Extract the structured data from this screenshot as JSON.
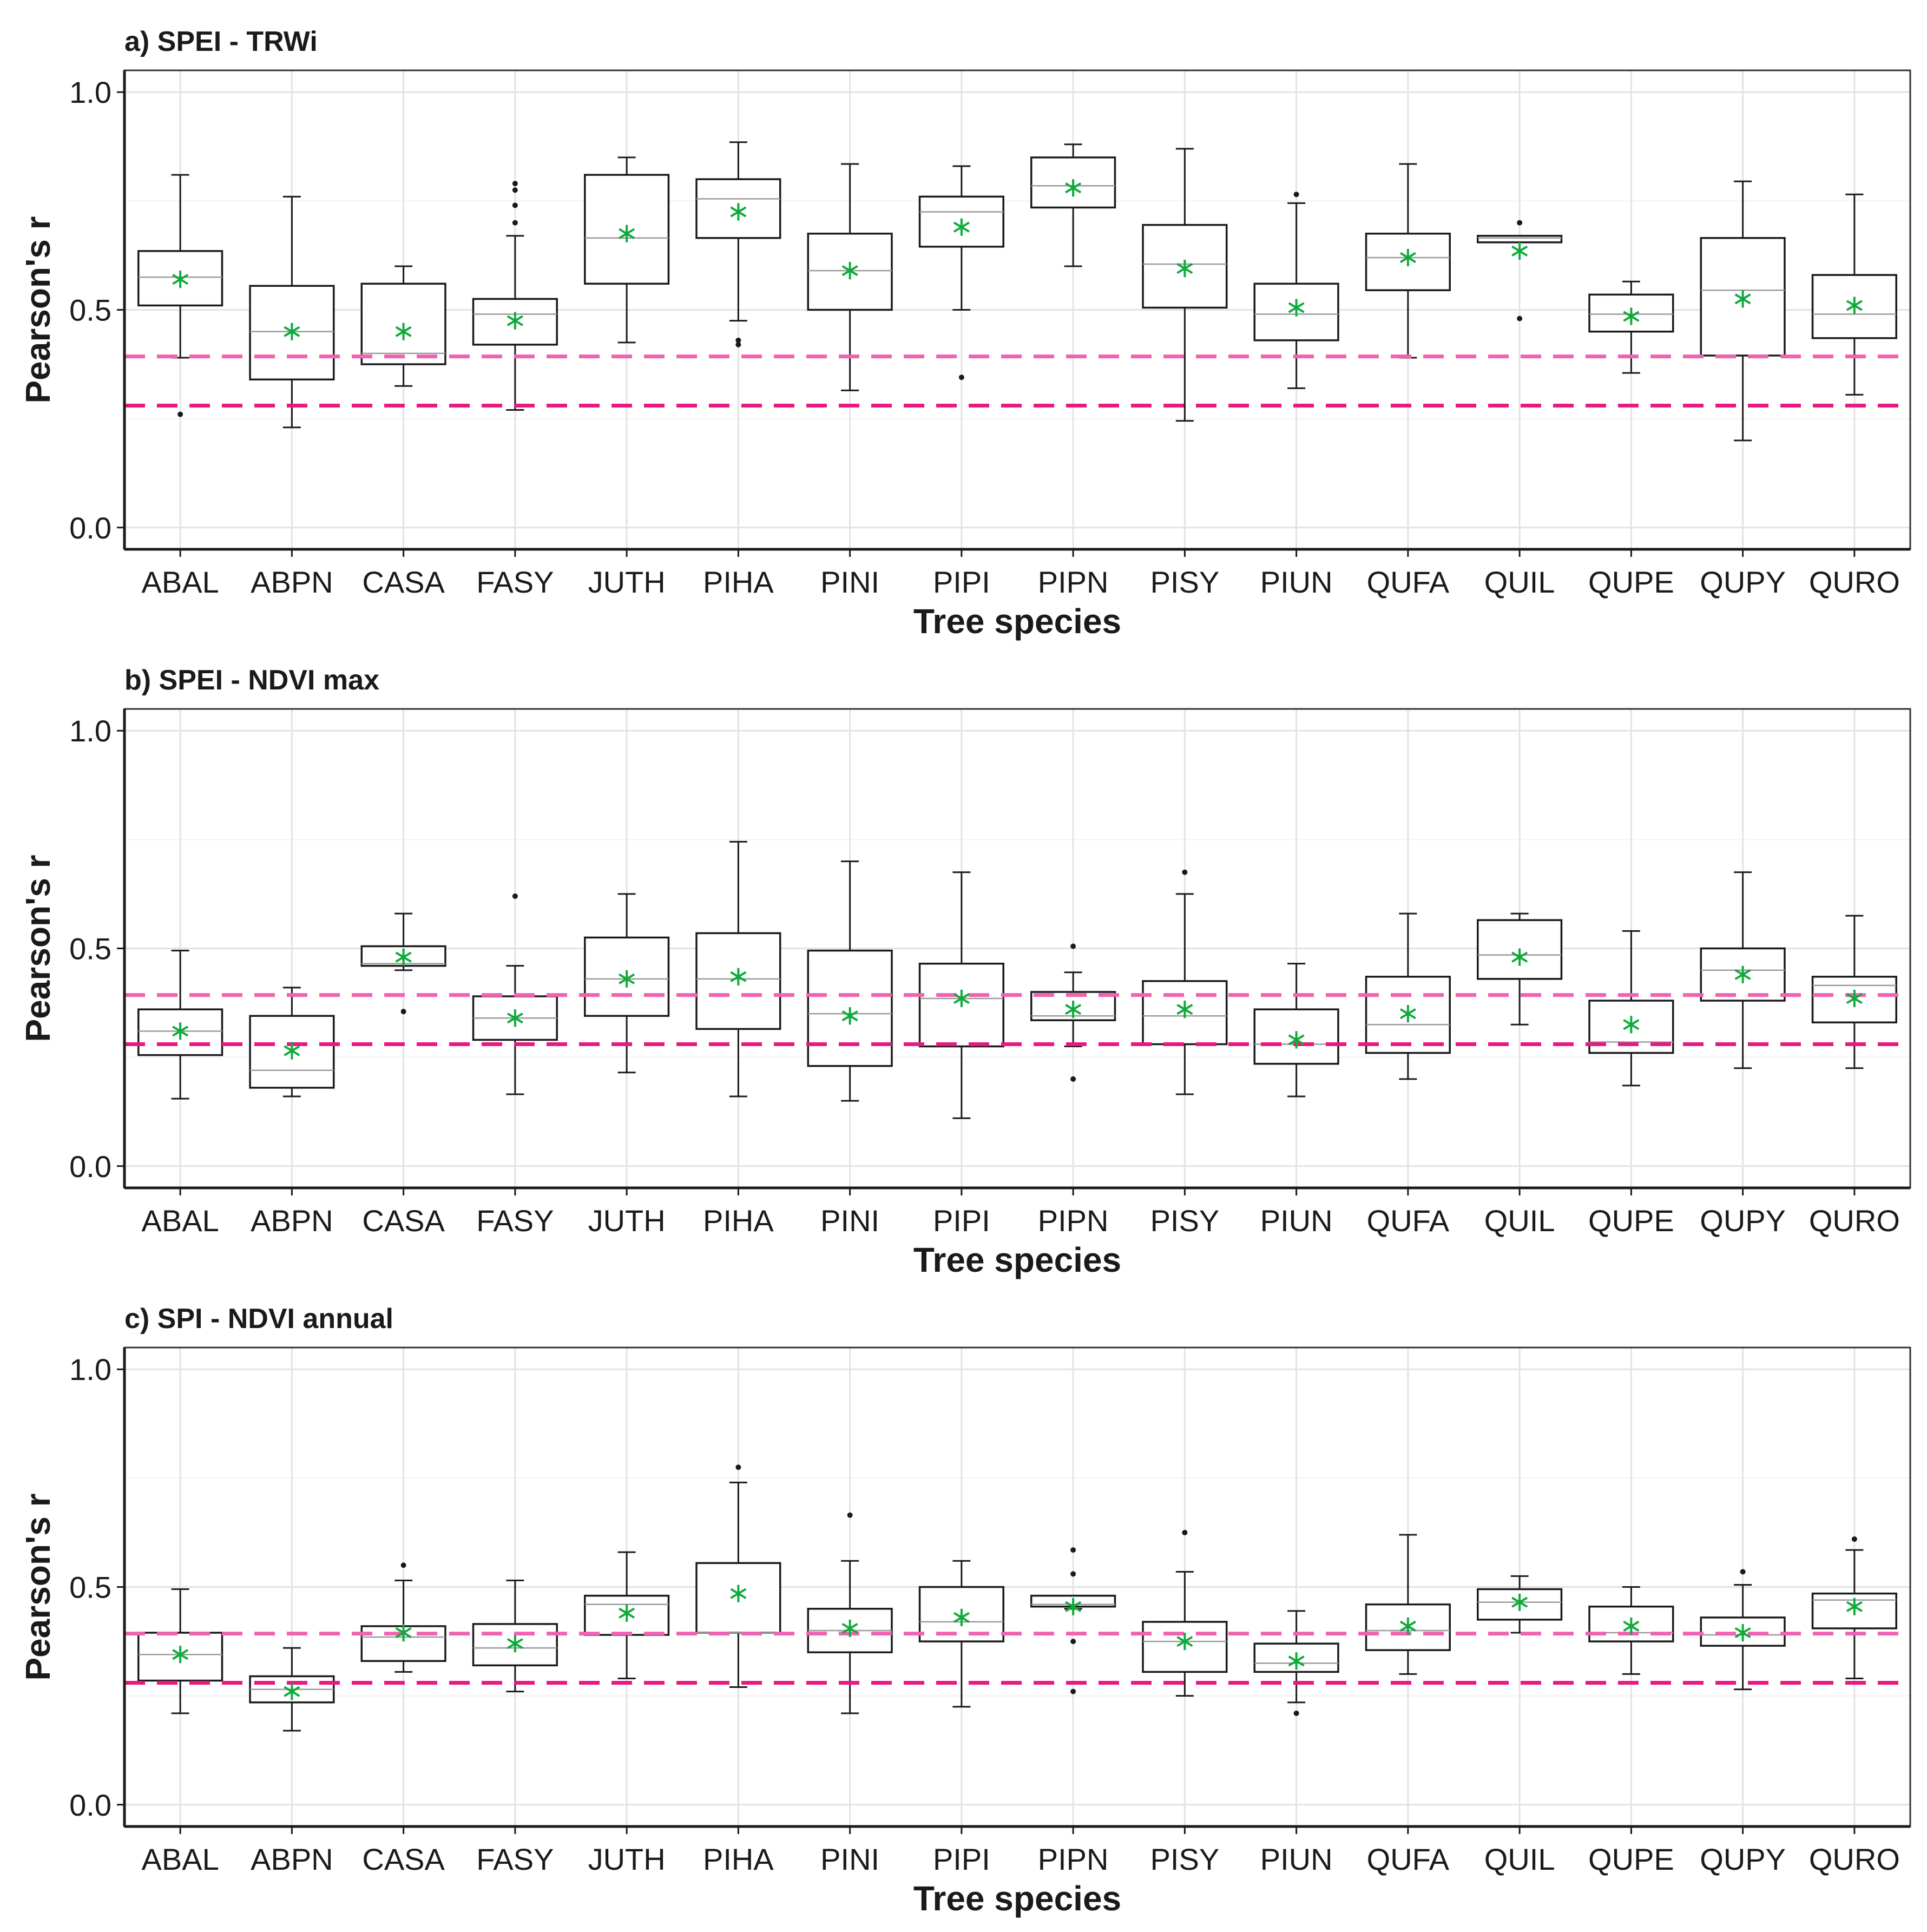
{
  "figure": {
    "description_labels": {
      "mean_marker": "*"
    }
  },
  "chart_data": [
    {
      "type": "boxplot",
      "title": "a) SPEI - TRWi",
      "xlabel": "Tree species",
      "ylabel": "Pearson's r",
      "ylim": [
        -0.05,
        1.05
      ],
      "yticks": [
        0.0,
        0.5,
        1.0
      ],
      "ytick_labels": [
        "0.0",
        "0.5",
        "1.0"
      ],
      "grid": true,
      "reference_lines": [
        {
          "value": 0.393,
          "color": "#f063b1",
          "style": "dashed"
        },
        {
          "value": 0.28,
          "color": "#e8197f",
          "style": "dashed"
        }
      ],
      "categories": [
        "ABAL",
        "ABPN",
        "CASA",
        "FASY",
        "JUTH",
        "PIHA",
        "PINI",
        "PIPI",
        "PIPN",
        "PISY",
        "PIUN",
        "QUFA",
        "QUIL",
        "QUPE",
        "QUPY",
        "QURO"
      ],
      "boxes": [
        {
          "min": 0.39,
          "q1": 0.51,
          "median": 0.575,
          "q3": 0.635,
          "max": 0.81,
          "mean": 0.57,
          "outliers": [
            0.26
          ]
        },
        {
          "min": 0.23,
          "q1": 0.34,
          "median": 0.45,
          "q3": 0.555,
          "max": 0.76,
          "mean": 0.45,
          "outliers": []
        },
        {
          "min": 0.325,
          "q1": 0.375,
          "median": 0.4,
          "q3": 0.56,
          "max": 0.6,
          "mean": 0.45,
          "outliers": []
        },
        {
          "min": 0.27,
          "q1": 0.42,
          "median": 0.49,
          "q3": 0.525,
          "max": 0.67,
          "mean": 0.475,
          "outliers": [
            0.7,
            0.74,
            0.775,
            0.79
          ]
        },
        {
          "min": 0.425,
          "q1": 0.56,
          "median": 0.665,
          "q3": 0.81,
          "max": 0.85,
          "mean": 0.675,
          "outliers": []
        },
        {
          "min": 0.475,
          "q1": 0.665,
          "median": 0.755,
          "q3": 0.8,
          "max": 0.885,
          "mean": 0.725,
          "outliers": [
            0.42,
            0.43
          ]
        },
        {
          "min": 0.315,
          "q1": 0.5,
          "median": 0.59,
          "q3": 0.675,
          "max": 0.835,
          "mean": 0.59,
          "outliers": []
        },
        {
          "min": 0.5,
          "q1": 0.645,
          "median": 0.725,
          "q3": 0.76,
          "max": 0.83,
          "mean": 0.69,
          "outliers": [
            0.345
          ]
        },
        {
          "min": 0.6,
          "q1": 0.735,
          "median": 0.785,
          "q3": 0.85,
          "max": 0.88,
          "mean": 0.78,
          "outliers": []
        },
        {
          "min": 0.245,
          "q1": 0.505,
          "median": 0.605,
          "q3": 0.695,
          "max": 0.87,
          "mean": 0.595,
          "outliers": []
        },
        {
          "min": 0.32,
          "q1": 0.43,
          "median": 0.49,
          "q3": 0.56,
          "max": 0.745,
          "mean": 0.505,
          "outliers": [
            0.765
          ]
        },
        {
          "min": 0.39,
          "q1": 0.545,
          "median": 0.62,
          "q3": 0.675,
          "max": 0.835,
          "mean": 0.62,
          "outliers": []
        },
        {
          "min": 0.655,
          "q1": 0.655,
          "median": 0.665,
          "q3": 0.67,
          "max": 0.67,
          "mean": 0.635,
          "outliers": [
            0.48,
            0.7
          ]
        },
        {
          "min": 0.355,
          "q1": 0.45,
          "median": 0.49,
          "q3": 0.535,
          "max": 0.565,
          "mean": 0.485,
          "outliers": []
        },
        {
          "min": 0.2,
          "q1": 0.395,
          "median": 0.545,
          "q3": 0.665,
          "max": 0.795,
          "mean": 0.525,
          "outliers": []
        },
        {
          "min": 0.305,
          "q1": 0.435,
          "median": 0.49,
          "q3": 0.58,
          "max": 0.765,
          "mean": 0.51,
          "outliers": []
        }
      ]
    },
    {
      "type": "boxplot",
      "title": "b) SPEI - NDVI max",
      "xlabel": "Tree species",
      "ylabel": "Pearson's r",
      "ylim": [
        -0.05,
        1.05
      ],
      "yticks": [
        0.0,
        0.5,
        1.0
      ],
      "ytick_labels": [
        "0.0",
        "0.5",
        "1.0"
      ],
      "grid": true,
      "reference_lines": [
        {
          "value": 0.393,
          "color": "#f063b1",
          "style": "dashed"
        },
        {
          "value": 0.28,
          "color": "#e8197f",
          "style": "dashed"
        }
      ],
      "categories": [
        "ABAL",
        "ABPN",
        "CASA",
        "FASY",
        "JUTH",
        "PIHA",
        "PINI",
        "PIPI",
        "PIPN",
        "PISY",
        "PIUN",
        "QUFA",
        "QUIL",
        "QUPE",
        "QUPY",
        "QURO"
      ],
      "boxes": [
        {
          "min": 0.155,
          "q1": 0.255,
          "median": 0.31,
          "q3": 0.36,
          "max": 0.495,
          "mean": 0.31,
          "outliers": []
        },
        {
          "min": 0.16,
          "q1": 0.18,
          "median": 0.22,
          "q3": 0.345,
          "max": 0.41,
          "mean": 0.265,
          "outliers": []
        },
        {
          "min": 0.45,
          "q1": 0.46,
          "median": 0.465,
          "q3": 0.505,
          "max": 0.58,
          "mean": 0.48,
          "outliers": [
            0.355
          ]
        },
        {
          "min": 0.165,
          "q1": 0.29,
          "median": 0.34,
          "q3": 0.39,
          "max": 0.46,
          "mean": 0.34,
          "outliers": [
            0.62
          ]
        },
        {
          "min": 0.215,
          "q1": 0.345,
          "median": 0.43,
          "q3": 0.525,
          "max": 0.625,
          "mean": 0.43,
          "outliers": []
        },
        {
          "min": 0.16,
          "q1": 0.315,
          "median": 0.43,
          "q3": 0.535,
          "max": 0.745,
          "mean": 0.435,
          "outliers": []
        },
        {
          "min": 0.15,
          "q1": 0.23,
          "median": 0.35,
          "q3": 0.495,
          "max": 0.7,
          "mean": 0.345,
          "outliers": []
        },
        {
          "min": 0.11,
          "q1": 0.275,
          "median": 0.385,
          "q3": 0.465,
          "max": 0.675,
          "mean": 0.385,
          "outliers": []
        },
        {
          "min": 0.275,
          "q1": 0.335,
          "median": 0.345,
          "q3": 0.4,
          "max": 0.445,
          "mean": 0.36,
          "outliers": [
            0.2,
            0.505
          ]
        },
        {
          "min": 0.165,
          "q1": 0.28,
          "median": 0.345,
          "q3": 0.425,
          "max": 0.625,
          "mean": 0.36,
          "outliers": [
            0.675
          ]
        },
        {
          "min": 0.16,
          "q1": 0.235,
          "median": 0.28,
          "q3": 0.36,
          "max": 0.465,
          "mean": 0.29,
          "outliers": []
        },
        {
          "min": 0.2,
          "q1": 0.26,
          "median": 0.325,
          "q3": 0.435,
          "max": 0.58,
          "mean": 0.35,
          "outliers": []
        },
        {
          "min": 0.325,
          "q1": 0.43,
          "median": 0.485,
          "q3": 0.565,
          "max": 0.58,
          "mean": 0.48,
          "outliers": []
        },
        {
          "min": 0.185,
          "q1": 0.26,
          "median": 0.285,
          "q3": 0.38,
          "max": 0.54,
          "mean": 0.325,
          "outliers": []
        },
        {
          "min": 0.225,
          "q1": 0.38,
          "median": 0.45,
          "q3": 0.5,
          "max": 0.675,
          "mean": 0.44,
          "outliers": []
        },
        {
          "min": 0.225,
          "q1": 0.33,
          "median": 0.415,
          "q3": 0.435,
          "max": 0.575,
          "mean": 0.385,
          "outliers": []
        }
      ]
    },
    {
      "type": "boxplot",
      "title": "c) SPI - NDVI annual",
      "xlabel": "Tree species",
      "ylabel": "Pearson's r",
      "ylim": [
        -0.05,
        1.05
      ],
      "yticks": [
        0.0,
        0.5,
        1.0
      ],
      "ytick_labels": [
        "0.0",
        "0.5",
        "1.0"
      ],
      "grid": true,
      "reference_lines": [
        {
          "value": 0.393,
          "color": "#f063b1",
          "style": "dashed"
        },
        {
          "value": 0.28,
          "color": "#e8197f",
          "style": "dashed"
        }
      ],
      "categories": [
        "ABAL",
        "ABPN",
        "CASA",
        "FASY",
        "JUTH",
        "PIHA",
        "PINI",
        "PIPI",
        "PIPN",
        "PISY",
        "PIUN",
        "QUFA",
        "QUIL",
        "QUPE",
        "QUPY",
        "QURO"
      ],
      "boxes": [
        {
          "min": 0.21,
          "q1": 0.285,
          "median": 0.345,
          "q3": 0.395,
          "max": 0.495,
          "mean": 0.345,
          "outliers": []
        },
        {
          "min": 0.17,
          "q1": 0.235,
          "median": 0.265,
          "q3": 0.295,
          "max": 0.36,
          "mean": 0.26,
          "outliers": []
        },
        {
          "min": 0.305,
          "q1": 0.33,
          "median": 0.385,
          "q3": 0.41,
          "max": 0.515,
          "mean": 0.395,
          "outliers": [
            0.55
          ]
        },
        {
          "min": 0.26,
          "q1": 0.32,
          "median": 0.36,
          "q3": 0.415,
          "max": 0.515,
          "mean": 0.37,
          "outliers": []
        },
        {
          "min": 0.29,
          "q1": 0.39,
          "median": 0.46,
          "q3": 0.48,
          "max": 0.58,
          "mean": 0.44,
          "outliers": []
        },
        {
          "min": 0.27,
          "q1": 0.395,
          "median": 0.395,
          "q3": 0.555,
          "max": 0.74,
          "mean": 0.485,
          "outliers": [
            0.775
          ]
        },
        {
          "min": 0.21,
          "q1": 0.35,
          "median": 0.4,
          "q3": 0.45,
          "max": 0.56,
          "mean": 0.405,
          "outliers": [
            0.665
          ]
        },
        {
          "min": 0.225,
          "q1": 0.375,
          "median": 0.42,
          "q3": 0.5,
          "max": 0.56,
          "mean": 0.43,
          "outliers": []
        },
        {
          "min": 0.45,
          "q1": 0.455,
          "median": 0.46,
          "q3": 0.48,
          "max": 0.48,
          "mean": 0.455,
          "outliers": [
            0.26,
            0.375,
            0.53,
            0.585
          ]
        },
        {
          "min": 0.25,
          "q1": 0.305,
          "median": 0.375,
          "q3": 0.42,
          "max": 0.535,
          "mean": 0.375,
          "outliers": [
            0.625
          ]
        },
        {
          "min": 0.235,
          "q1": 0.305,
          "median": 0.325,
          "q3": 0.37,
          "max": 0.445,
          "mean": 0.33,
          "outliers": [
            0.21
          ]
        },
        {
          "min": 0.3,
          "q1": 0.355,
          "median": 0.4,
          "q3": 0.46,
          "max": 0.62,
          "mean": 0.41,
          "outliers": []
        },
        {
          "min": 0.395,
          "q1": 0.425,
          "median": 0.465,
          "q3": 0.495,
          "max": 0.525,
          "mean": 0.465,
          "outliers": []
        },
        {
          "min": 0.3,
          "q1": 0.375,
          "median": 0.395,
          "q3": 0.455,
          "max": 0.5,
          "mean": 0.41,
          "outliers": []
        },
        {
          "min": 0.265,
          "q1": 0.365,
          "median": 0.39,
          "q3": 0.43,
          "max": 0.505,
          "mean": 0.395,
          "outliers": [
            0.535
          ]
        },
        {
          "min": 0.29,
          "q1": 0.405,
          "median": 0.47,
          "q3": 0.485,
          "max": 0.585,
          "mean": 0.455,
          "outliers": [
            0.61
          ]
        }
      ]
    }
  ]
}
